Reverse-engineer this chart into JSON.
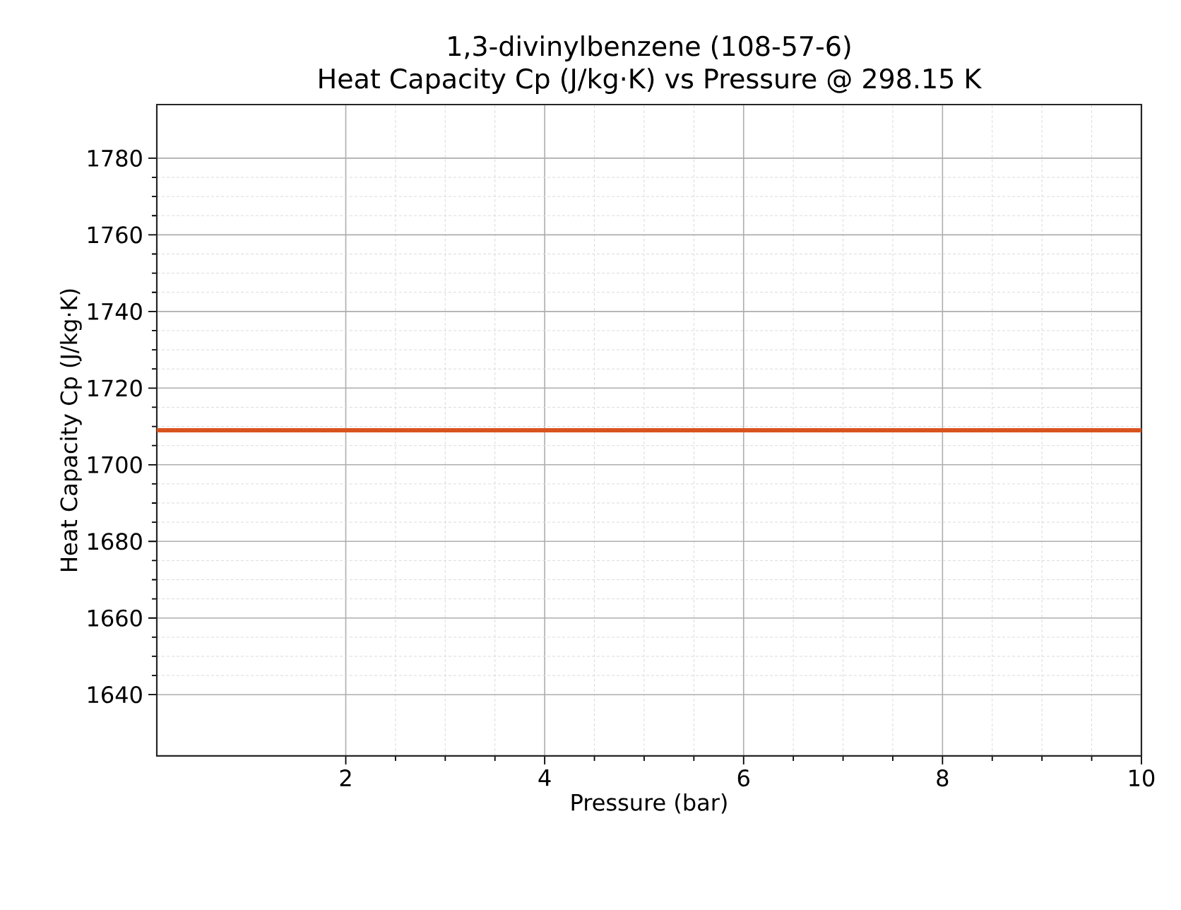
{
  "chart_data": {
    "type": "line",
    "title": "1,3-divinylbenzene (108-57-6)",
    "subtitle": "Heat Capacity Cp (J/kg·K) vs Pressure @ 298.15 K",
    "xlabel": "Pressure (bar)",
    "ylabel": "Heat Capacity Cp (J/kg·K)",
    "x": [
      0.1,
      10
    ],
    "series": [
      {
        "color": "#d9531e",
        "values": [
          1709,
          1709
        ]
      }
    ],
    "xlim": [
      0.1,
      10
    ],
    "ylim": [
      1624,
      1794
    ],
    "xticks": [
      2,
      4,
      6,
      8,
      10
    ],
    "yticks": [
      1640,
      1660,
      1680,
      1700,
      1720,
      1740,
      1760,
      1780
    ],
    "grid": true
  }
}
